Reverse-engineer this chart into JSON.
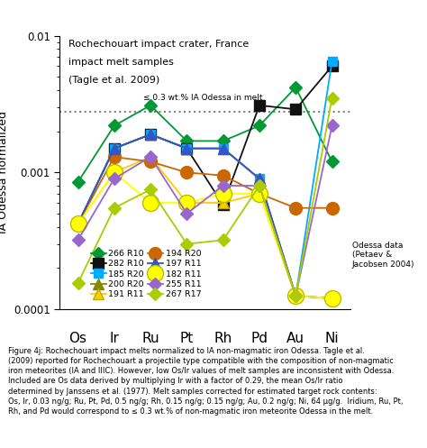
{
  "elements": [
    "Os",
    "Ir",
    "Ru",
    "Pt",
    "Rh",
    "Pd",
    "Au",
    "Ni"
  ],
  "series": [
    {
      "label": "266 R10",
      "color": "#009933",
      "marker": "D",
      "markersize": 7,
      "linewidth": 1.3,
      "values": [
        0.00085,
        0.0022,
        0.0031,
        0.0017,
        0.0017,
        0.0022,
        0.0042,
        0.0012
      ]
    },
    {
      "label": "282 R10",
      "color": "#111111",
      "marker": "s",
      "markersize": 9,
      "linewidth": 1.3,
      "values": [
        0.00042,
        0.0015,
        0.0019,
        0.0015,
        0.00058,
        0.0031,
        0.0029,
        0.006
      ]
    },
    {
      "label": "185 R20",
      "color": "#00aaff",
      "marker": "s",
      "markersize": 7,
      "linewidth": 1.3,
      "values": [
        0.00042,
        0.0015,
        0.0019,
        0.0015,
        0.0015,
        0.0009,
        0.000125,
        0.0065
      ]
    },
    {
      "label": "200 R20",
      "color": "#888800",
      "marker": "^",
      "markersize": 8,
      "linewidth": 1.3,
      "values": [
        0.00042,
        0.0015,
        0.0019,
        0.0015,
        0.0015,
        0.0009,
        0.000125,
        0.00012
      ]
    },
    {
      "label": "191 R11",
      "color": "#ffcc00",
      "marker": "^",
      "markersize": 9,
      "linewidth": 1.3,
      "values": [
        0.00042,
        0.001,
        0.0013,
        0.0006,
        0.0006,
        0.0007,
        0.000125,
        0.00012
      ]
    },
    {
      "label": "194 R20",
      "color": "#cc6600",
      "marker": "o",
      "markersize": 10,
      "linewidth": 1.3,
      "values": [
        0.00042,
        0.0013,
        0.0012,
        0.001,
        0.00095,
        0.0007,
        0.00055,
        0.00055
      ]
    },
    {
      "label": "197 R11",
      "color": "#3355cc",
      "marker": "^",
      "markersize": 8,
      "linewidth": 1.3,
      "values": [
        0.00042,
        0.0015,
        0.0019,
        0.0015,
        0.0015,
        0.0009,
        0.000125,
        0.00012
      ]
    },
    {
      "label": "182 R11",
      "color": "#ffff00",
      "marker": "o",
      "markersize": 13,
      "linewidth": 1.3,
      "values": [
        0.00042,
        0.001,
        0.0006,
        0.0006,
        0.0007,
        0.0007,
        0.000125,
        0.00012
      ]
    },
    {
      "label": "255 R11",
      "color": "#9966cc",
      "marker": "D",
      "markersize": 7,
      "linewidth": 1.3,
      "values": [
        0.00032,
        0.0009,
        0.0013,
        0.0005,
        0.0008,
        0.0008,
        0.000125,
        0.0022
      ]
    },
    {
      "label": "267 R17",
      "color": "#aacc00",
      "marker": "D",
      "markersize": 7,
      "linewidth": 1.3,
      "values": [
        0.000155,
        0.00055,
        0.00075,
        0.0003,
        0.00032,
        0.0008,
        0.000125,
        0.0035
      ]
    }
  ],
  "dashed_line_value": 0.0028,
  "dashed_line_label": "≤ 0.3 wt.% IA Odessa in melt",
  "ylim": [
    0.0001,
    0.01
  ],
  "ylabel": "IA Odessa normalized",
  "title_lines": [
    "Rochechouart impact crater, France",
    "impact melt samples",
    "(Tagle et al. 2009)"
  ],
  "caption": "Figure 4j: Rochechouart impact melts normalized to IA non-magmatic iron Odessa. Tagle et al.\n(2009) reported for Rochechouart a projectile type compatible with the composition of non-magmatic\niron meteorites (IA and IIIC). However, low Os/Ir values of melt samples are inconsistent with Odessa.\nIncluded are Os data derived by multiplying Ir with a factor of 0.29, the mean Os/Ir ratio\ndetermined by Janssens et al. (1977). Melt samples corrected for estimated target rock contents:\nOs, Ir, 0.03 ng/g; Ru, Pt, Pd, 0.5 ng/g; Rh, 0.15 ng/g; 0.15 ng/g; Au, 0.2 ng/g; Ni, 64 μg/g.  Iridium, Ru, Pt,\nRh, and Pd would correspond to ≤ 0.3 wt.% of non-magmatic iron meteorite Odessa in the melt.",
  "odessa_annotation": "Odessa data\n(Petaev &\nJacobsen 2004)",
  "legend_labels_col1": [
    "266 R10",
    "185 R20",
    "191 R11",
    "197 R11",
    "255 R11"
  ],
  "legend_labels_col2": [
    "282 R10",
    "200 R20",
    "194 R20",
    "182 R11",
    "267 R17"
  ]
}
